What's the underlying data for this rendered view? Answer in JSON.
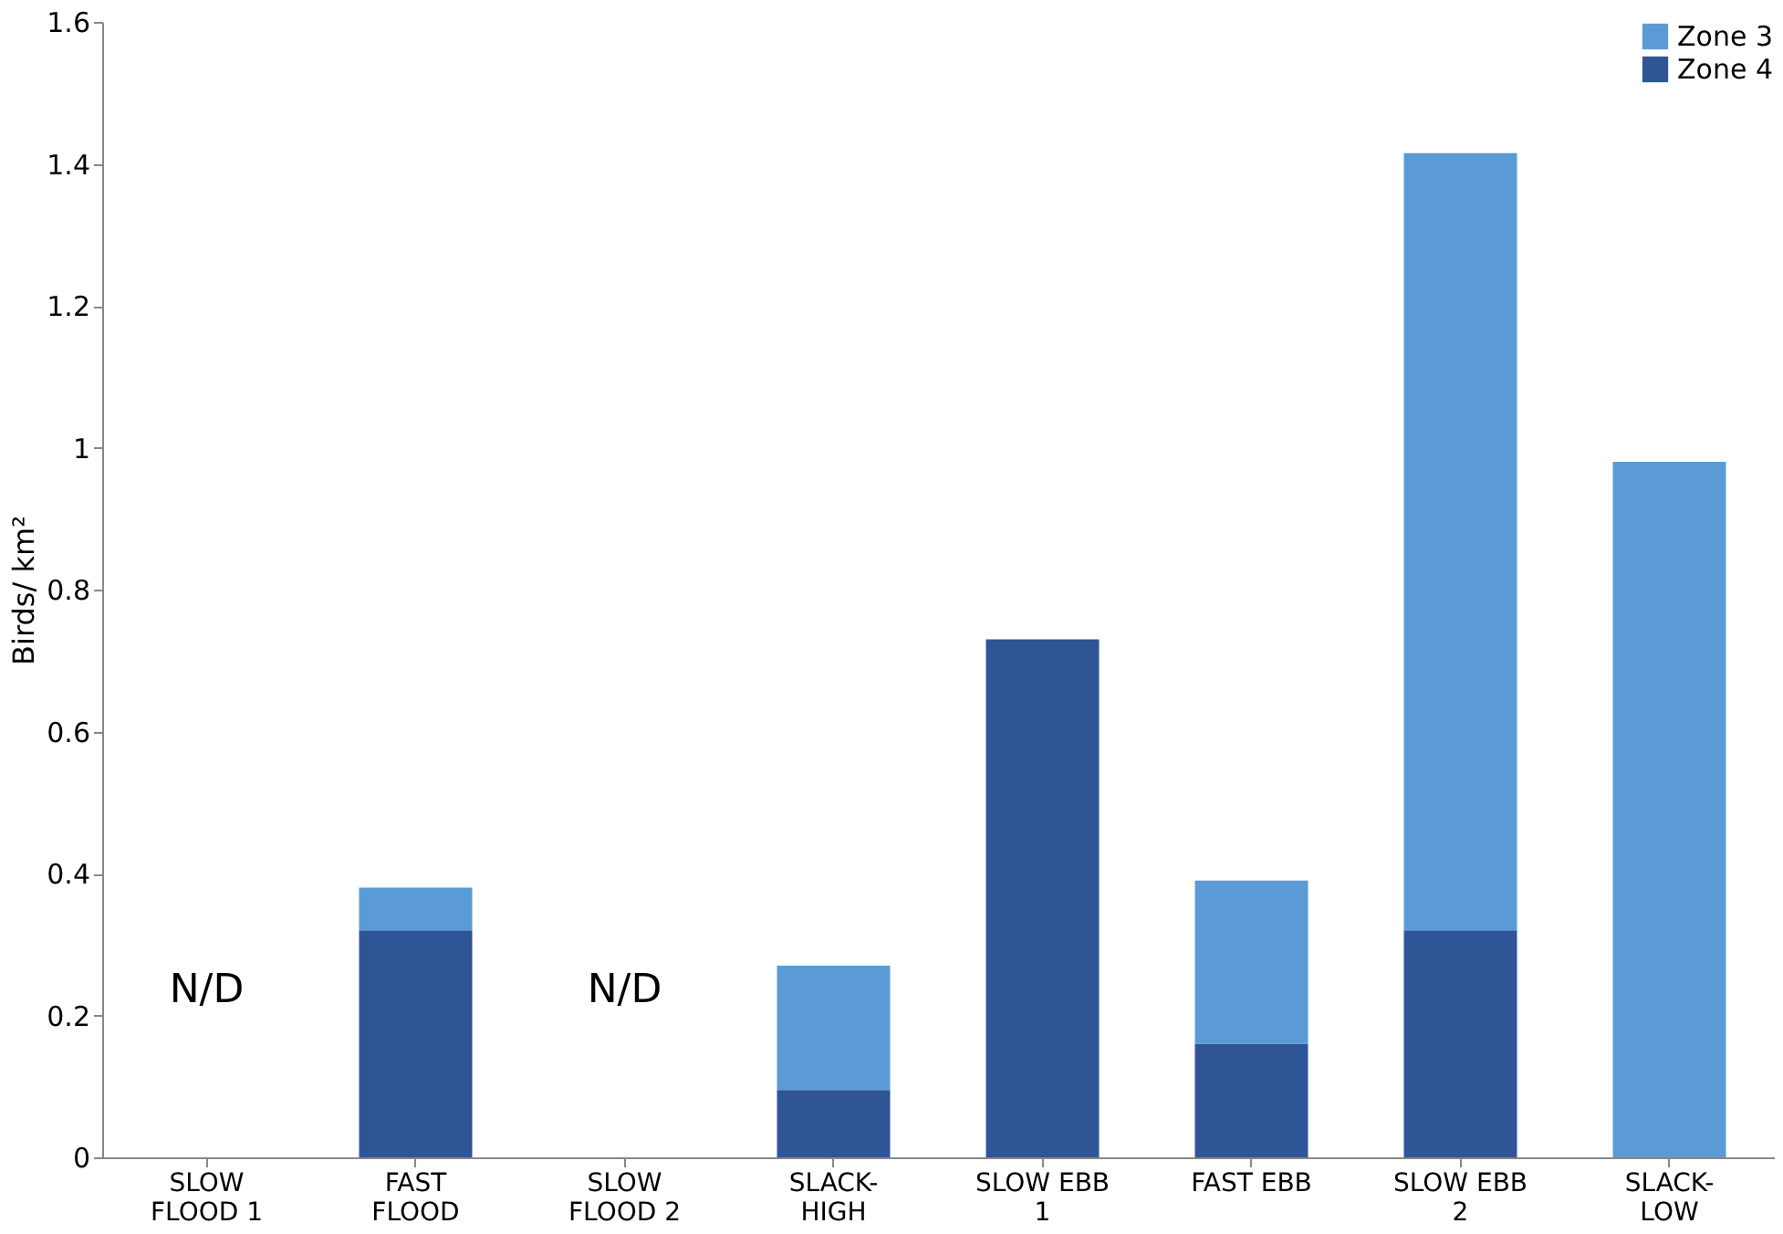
{
  "chart_data": {
    "type": "bar",
    "stacked": true,
    "ylabel": "Birds/ km²",
    "categories": [
      "SLOW\nFLOOD 1",
      "FAST\nFLOOD",
      "SLOW\nFLOOD 2",
      "SLACK-\nHIGH",
      "SLOW EBB\n1",
      "FAST EBB",
      "SLOW EBB\n2",
      "SLACK-\nLOW"
    ],
    "series": [
      {
        "name": "Zone 4",
        "color": "#2f5597",
        "values": [
          null,
          0.32,
          null,
          0.095,
          0.73,
          0.16,
          0.32,
          null
        ]
      },
      {
        "name": "Zone 3",
        "color": "#5b9bd5",
        "values": [
          null,
          0.06,
          null,
          0.175,
          null,
          0.23,
          1.095,
          0.98
        ]
      }
    ],
    "ylim": [
      0,
      1.6
    ],
    "yticks": [
      0,
      0.2,
      0.4,
      0.6,
      0.8,
      1,
      1.2,
      1.4,
      1.6
    ],
    "grid": false,
    "legend": "top right",
    "annotations": [
      "N/D",
      "N/D"
    ]
  }
}
